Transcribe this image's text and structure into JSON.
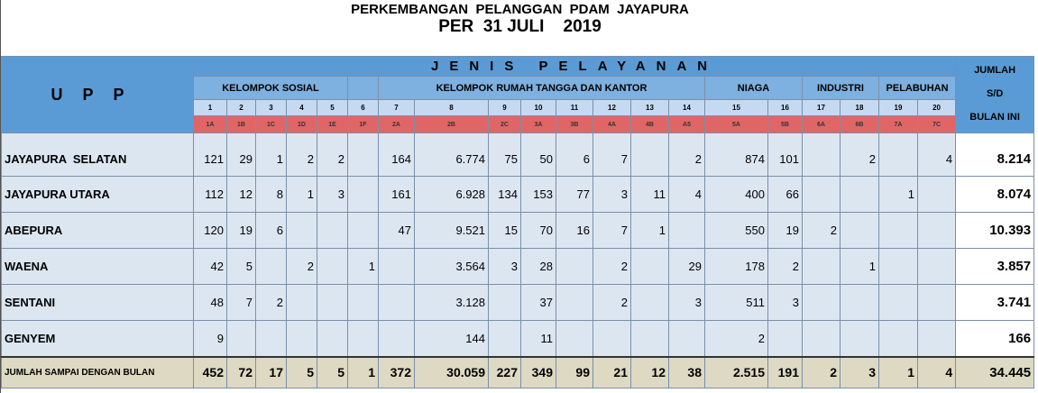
{
  "title": [
    "PERKEMBANGAN  PELANGGAN  PDAM  JAYAPURA",
    "PER  31 JULI    2019"
  ],
  "header": {
    "upp": "UPP",
    "jenis": "JENIS PELAYANAN",
    "jumlah": [
      "JUMLAH",
      "S/D",
      "BULAN INI"
    ],
    "groups": [
      "KELOMPOK SOSIAL",
      null,
      "KELOMPOK RUMAH TANGGA DAN KANTOR",
      "NIAGA",
      "INDUSTRI",
      "PELABUHAN"
    ],
    "numbers": [
      "1",
      "2",
      "3",
      "4",
      "5",
      "6",
      "7",
      "8",
      "9",
      "10",
      "11",
      "12",
      "13",
      "14",
      "15",
      "16",
      "17",
      "18",
      "19",
      "20"
    ],
    "codes": [
      "1A",
      "1B",
      "1C",
      "1D",
      "1E",
      "1F",
      "2A",
      "2B",
      "2C",
      "3A",
      "3B",
      "4A",
      "4B",
      "A5",
      "5A",
      "5B",
      "6A",
      "6B",
      "7A",
      "7C"
    ]
  },
  "rows": [
    {
      "name": "JAYAPURA  SELATAN",
      "values": [
        "121",
        "29",
        "1",
        "2",
        "2",
        null,
        "164",
        "6.774",
        "75",
        "50",
        "6",
        "7",
        null,
        "2",
        "874",
        "101",
        null,
        "2",
        null,
        "4"
      ],
      "total": "8.214"
    },
    {
      "name": "JAYAPURA UTARA",
      "values": [
        "112",
        "12",
        "8",
        "1",
        "3",
        null,
        "161",
        "6.928",
        "134",
        "153",
        "77",
        "3",
        "11",
        "4",
        "400",
        "66",
        null,
        null,
        "1",
        null
      ],
      "total": "8.074"
    },
    {
      "name": "ABEPURA",
      "values": [
        "120",
        "19",
        "6",
        null,
        null,
        null,
        "47",
        "9.521",
        "15",
        "70",
        "16",
        "7",
        "1",
        null,
        "550",
        "19",
        "2",
        null,
        null,
        null
      ],
      "total": "10.393"
    },
    {
      "name": "WAENA",
      "values": [
        "42",
        "5",
        null,
        "2",
        null,
        "1",
        null,
        "3.564",
        "3",
        "28",
        null,
        "2",
        null,
        "29",
        "178",
        "2",
        null,
        "1",
        null,
        null
      ],
      "total": "3.857"
    },
    {
      "name": "SENTANI",
      "values": [
        "48",
        "7",
        "2",
        null,
        null,
        null,
        null,
        "3.128",
        null,
        "37",
        null,
        "2",
        null,
        "3",
        "511",
        "3",
        null,
        null,
        null,
        null
      ],
      "total": "3.741"
    },
    {
      "name": "GENYEM",
      "values": [
        "9",
        null,
        null,
        null,
        null,
        null,
        null,
        "144",
        null,
        "11",
        null,
        null,
        null,
        null,
        "2",
        null,
        null,
        null,
        null,
        null
      ],
      "total": "166"
    }
  ],
  "summary": {
    "name": "JUMLAH SAMPAI DENGAN BULAN",
    "values": [
      "452",
      "72",
      "17",
      "5",
      "5",
      "1",
      "372",
      "30.059",
      "227",
      "349",
      "99",
      "21",
      "12",
      "38",
      "2.515",
      "191",
      "2",
      "3",
      "1",
      "4"
    ],
    "total": "34.445"
  }
}
